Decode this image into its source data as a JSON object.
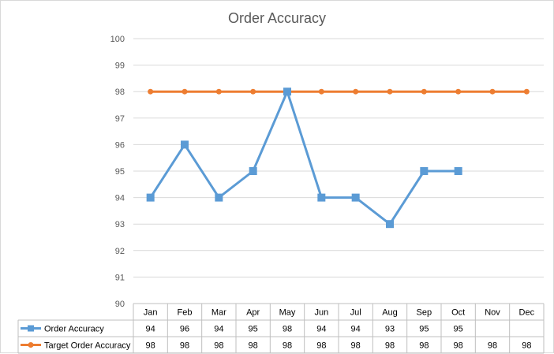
{
  "chart_data": {
    "type": "line",
    "title": "Order Accuracy",
    "xlabel": "",
    "ylabel": "",
    "ylim": [
      90,
      100
    ],
    "yticks": [
      90,
      91,
      92,
      93,
      94,
      95,
      96,
      97,
      98,
      99,
      100
    ],
    "grid": true,
    "data_table": true,
    "categories": [
      "Jan",
      "Feb",
      "Mar",
      "Apr",
      "May",
      "Jun",
      "Jul",
      "Aug",
      "Sep",
      "Oct",
      "Nov",
      "Dec"
    ],
    "series": [
      {
        "name": "Order Accuracy",
        "color": "#5b9bd5",
        "marker": "square",
        "values": [
          94,
          96,
          94,
          95,
          98,
          94,
          94,
          93,
          95,
          95,
          null,
          null
        ]
      },
      {
        "name": "Target Order Accuracy",
        "color": "#ed7d31",
        "marker": "circle",
        "values": [
          98,
          98,
          98,
          98,
          98,
          98,
          98,
          98,
          98,
          98,
          98,
          98
        ]
      }
    ]
  }
}
